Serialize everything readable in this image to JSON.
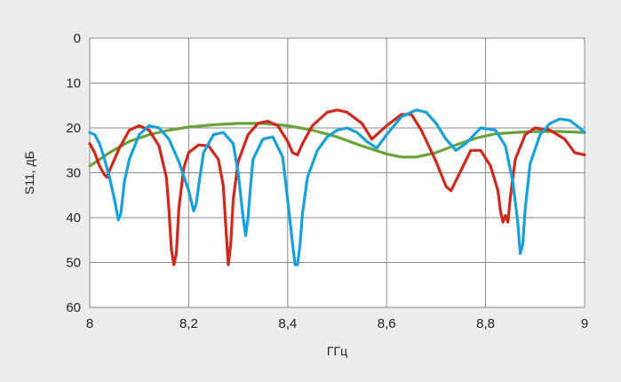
{
  "chart_data": {
    "type": "line",
    "title": "",
    "xlabel": "ГГц",
    "ylabel": "S11, дБ",
    "xlim": [
      8,
      9
    ],
    "ylim": [
      0,
      60
    ],
    "y_inverted": true,
    "grid": true,
    "x_ticks": [
      8,
      8.2,
      8.4,
      8.6,
      8.8,
      9
    ],
    "x_tick_labels": [
      "8",
      "8,2",
      "8,4",
      "8,6",
      "8,8",
      "9"
    ],
    "y_ticks": [
      0,
      10,
      20,
      30,
      40,
      50,
      60
    ],
    "y_tick_labels": [
      "0",
      "10",
      "20",
      "30",
      "40",
      "50",
      "60"
    ],
    "series": [
      {
        "color": "#6aa33c",
        "x": [
          8.0,
          8.04,
          8.08,
          8.12,
          8.16,
          8.2,
          8.25,
          8.3,
          8.35,
          8.4,
          8.45,
          8.5,
          8.55,
          8.6,
          8.63,
          8.66,
          8.7,
          8.74,
          8.78,
          8.82,
          8.86,
          8.9,
          8.95,
          9.0
        ],
        "y": [
          28.5,
          25.5,
          23.0,
          21.5,
          20.5,
          19.8,
          19.3,
          19.0,
          19.0,
          19.5,
          20.5,
          22.0,
          24.0,
          25.8,
          26.5,
          26.5,
          25.5,
          23.8,
          22.3,
          21.3,
          21.0,
          20.8,
          20.8,
          21.0
        ]
      },
      {
        "color": "#cc2a1f",
        "x": [
          8.0,
          8.01,
          8.02,
          8.03,
          8.035,
          8.04,
          8.06,
          8.08,
          8.1,
          8.12,
          8.14,
          8.155,
          8.16,
          8.165,
          8.17,
          8.175,
          8.18,
          8.19,
          8.2,
          8.22,
          8.24,
          8.26,
          8.27,
          8.275,
          8.28,
          8.285,
          8.29,
          8.3,
          8.32,
          8.34,
          8.36,
          8.38,
          8.4,
          8.41,
          8.42,
          8.43,
          8.45,
          8.48,
          8.5,
          8.52,
          8.55,
          8.57,
          8.6,
          8.63,
          8.65,
          8.67,
          8.7,
          8.72,
          8.73,
          8.75,
          8.77,
          8.79,
          8.81,
          8.825,
          8.83,
          8.835,
          8.84,
          8.845,
          8.85,
          8.86,
          8.88,
          8.9,
          8.93,
          8.96,
          8.98,
          9.0
        ],
        "y": [
          23.5,
          25.5,
          28.5,
          30.5,
          31.0,
          29.5,
          24.5,
          20.5,
          19.5,
          20.5,
          24.0,
          31.0,
          38.0,
          47.0,
          50.5,
          48.0,
          38.0,
          29.0,
          25.5,
          23.8,
          24.0,
          27.0,
          33.0,
          42.0,
          50.5,
          46.0,
          36.0,
          27.5,
          21.5,
          19.0,
          18.5,
          19.5,
          23.0,
          25.5,
          26.0,
          23.5,
          19.5,
          16.5,
          16.0,
          16.5,
          19.0,
          22.5,
          19.5,
          17.0,
          17.0,
          20.5,
          27.5,
          33.0,
          34.0,
          29.5,
          25.0,
          25.0,
          28.5,
          34.0,
          38.5,
          41.0,
          39.5,
          41.0,
          35.5,
          27.0,
          21.5,
          20.0,
          20.5,
          22.5,
          25.5,
          26.0
        ]
      },
      {
        "color": "#1aa0d8",
        "x": [
          8.0,
          8.01,
          8.02,
          8.03,
          8.04,
          8.05,
          8.058,
          8.063,
          8.07,
          8.08,
          8.1,
          8.12,
          8.14,
          8.16,
          8.18,
          8.2,
          8.21,
          8.215,
          8.22,
          8.23,
          8.25,
          8.27,
          8.29,
          8.3,
          8.31,
          8.315,
          8.32,
          8.325,
          8.33,
          8.35,
          8.37,
          8.39,
          8.4,
          8.41,
          8.415,
          8.42,
          8.425,
          8.43,
          8.44,
          8.46,
          8.48,
          8.5,
          8.52,
          8.54,
          8.56,
          8.58,
          8.6,
          8.63,
          8.66,
          8.68,
          8.7,
          8.72,
          8.74,
          8.76,
          8.79,
          8.82,
          8.84,
          8.855,
          8.865,
          8.87,
          8.875,
          8.88,
          8.89,
          8.91,
          8.93,
          8.95,
          8.97,
          8.99,
          9.0
        ],
        "y": [
          21.0,
          21.5,
          23.5,
          27.0,
          31.0,
          36.0,
          40.5,
          39.0,
          32.0,
          27.0,
          21.5,
          19.5,
          20.0,
          22.5,
          27.5,
          34.0,
          38.5,
          37.0,
          33.0,
          25.5,
          21.5,
          21.0,
          23.5,
          30.0,
          40.0,
          44.0,
          40.0,
          33.0,
          27.0,
          22.5,
          22.0,
          26.5,
          36.0,
          46.0,
          50.5,
          50.5,
          46.0,
          39.0,
          31.0,
          25.0,
          22.0,
          20.5,
          20.0,
          21.0,
          23.0,
          24.5,
          21.5,
          17.5,
          16.0,
          16.5,
          19.0,
          22.5,
          25.0,
          23.5,
          20.0,
          20.5,
          24.0,
          32.0,
          41.0,
          48.0,
          46.0,
          38.0,
          28.0,
          21.5,
          19.0,
          18.0,
          18.3,
          20.0,
          21.0
        ]
      }
    ]
  }
}
